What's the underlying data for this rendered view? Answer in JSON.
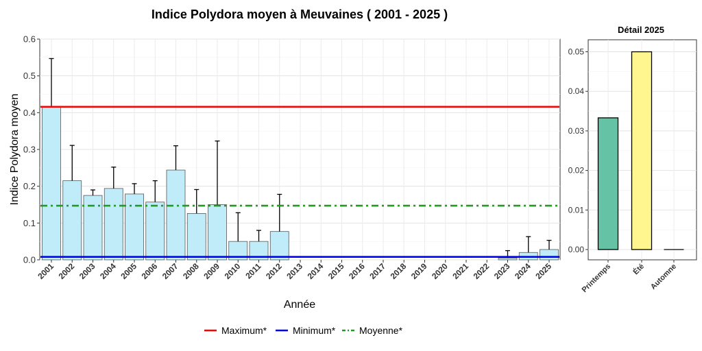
{
  "chart_data": [
    {
      "type": "bar",
      "title": "Indice Polydora moyen à Meuvaines ( 2001 - 2025 )",
      "xlabel": "Année",
      "ylabel": "Indice Polydora moyen",
      "ylim": [
        0,
        0.6
      ],
      "yticks": [
        "0.0",
        "0.1",
        "0.2",
        "0.3",
        "0.4",
        "0.5",
        "0.6"
      ],
      "grid": true,
      "categories": [
        "2001",
        "2002",
        "2003",
        "2004",
        "2005",
        "2006",
        "2007",
        "2008",
        "2009",
        "2010",
        "2011",
        "2012",
        "2013",
        "2014",
        "2015",
        "2016",
        "2017",
        "2018",
        "2019",
        "2020",
        "2021",
        "2022",
        "2023",
        "2024",
        "2025"
      ],
      "values": [
        0.415,
        0.215,
        0.175,
        0.194,
        0.179,
        0.157,
        0.244,
        0.126,
        0.15,
        0.05,
        0.05,
        0.077,
        null,
        null,
        null,
        null,
        null,
        null,
        null,
        null,
        null,
        null,
        0.005,
        0.02,
        0.028
      ],
      "error_upper": [
        0.547,
        0.311,
        0.19,
        0.252,
        0.207,
        0.215,
        0.31,
        0.191,
        0.323,
        0.128,
        0.08,
        0.178,
        null,
        null,
        null,
        null,
        null,
        null,
        null,
        null,
        null,
        null,
        0.025,
        0.063,
        0.053
      ],
      "bar_color": "#C0ECFA",
      "reference_lines": [
        {
          "name": "Maximum*",
          "value": 0.416,
          "color": "#FF0000",
          "style": "solid"
        },
        {
          "name": "Minimum*",
          "value": 0.008,
          "color": "#0000FF",
          "style": "solid"
        },
        {
          "name": "Moyenne*",
          "value": 0.147,
          "color": "#229A22",
          "style": "dashdot"
        }
      ],
      "legend_position": "bottom"
    },
    {
      "type": "bar",
      "title": "Détail 2025",
      "categories": [
        "Printemps",
        "Été",
        "Automne"
      ],
      "values": [
        0.0333,
        0.05,
        0.0
      ],
      "colors": [
        "#66C2A5",
        "#FFF68F",
        "#B3B3B3"
      ],
      "ylim": [
        0,
        0.052
      ],
      "yticks": [
        "0.00",
        "0.01",
        "0.02",
        "0.03",
        "0.04",
        "0.05"
      ],
      "grid": true
    }
  ]
}
